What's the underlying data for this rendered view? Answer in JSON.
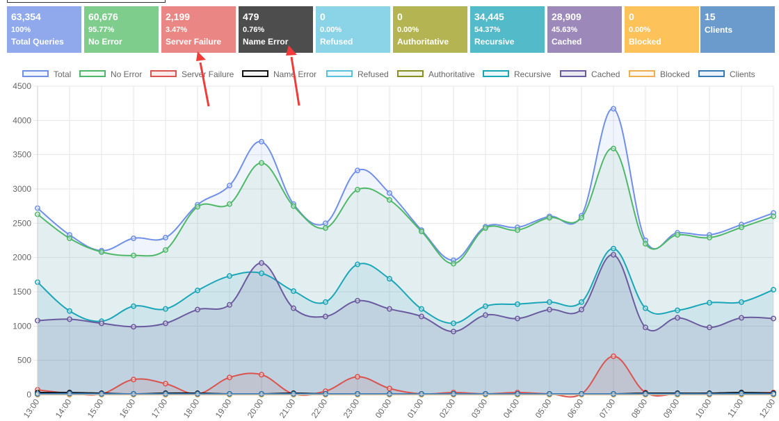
{
  "tiles": [
    {
      "value": "63,354",
      "pct": "100%",
      "label": "Total Queries",
      "color": "#8fa9ec"
    },
    {
      "value": "60,676",
      "pct": "95.77%",
      "label": "No Error",
      "color": "#7fcd8c"
    },
    {
      "value": "2,199",
      "pct": "3.47%",
      "label": "Server Failure",
      "color": "#ea8683"
    },
    {
      "value": "479",
      "pct": "0.76%",
      "label": "Name Error",
      "color": "#4d4d4d"
    },
    {
      "value": "0",
      "pct": "0.00%",
      "label": "Refused",
      "color": "#8bd3e6"
    },
    {
      "value": "0",
      "pct": "0.00%",
      "label": "Authoritative",
      "color": "#b4b552"
    },
    {
      "value": "34,445",
      "pct": "54.37%",
      "label": "Recursive",
      "color": "#53bac9"
    },
    {
      "value": "28,909",
      "pct": "45.63%",
      "label": "Cached",
      "color": "#9d88ba"
    },
    {
      "value": "0",
      "pct": "0.00%",
      "label": "Blocked",
      "color": "#fdc25a"
    },
    {
      "value": "15",
      "pct": "",
      "label": "Clients",
      "color": "#6a9bcc"
    }
  ],
  "chart_data": {
    "type": "line",
    "title": "",
    "xlabel": "",
    "ylabel": "",
    "ylim": [
      0,
      4500
    ],
    "yticks": [
      "0",
      "500",
      "1000",
      "1500",
      "2000",
      "2500",
      "3000",
      "3500",
      "4000",
      "4500"
    ],
    "categories": [
      "13:00",
      "14:00",
      "15:00",
      "16:00",
      "17:00",
      "18:00",
      "19:00",
      "20:00",
      "21:00",
      "22:00",
      "23:00",
      "00:00",
      "01:00",
      "02:00",
      "03:00",
      "04:00",
      "05:00",
      "06:00",
      "07:00",
      "08:00",
      "09:00",
      "10:00",
      "11:00",
      "12:00"
    ],
    "series": [
      {
        "name": "Total",
        "color": "#6f8fe8",
        "fill": "rgba(111,143,232,0.10)",
        "values": [
          2720,
          2330,
          2100,
          2280,
          2290,
          2770,
          3050,
          3690,
          2780,
          2500,
          3270,
          2940,
          2400,
          1960,
          2450,
          2440,
          2600,
          2610,
          4170,
          2250,
          2360,
          2330,
          2480,
          2650
        ]
      },
      {
        "name": "No Error",
        "color": "#4fb868",
        "fill": "rgba(79,184,104,0.08)",
        "values": [
          2630,
          2280,
          2080,
          2030,
          2110,
          2740,
          2780,
          3380,
          2750,
          2430,
          2990,
          2840,
          2380,
          1910,
          2430,
          2400,
          2580,
          2580,
          3590,
          2200,
          2330,
          2290,
          2440,
          2600
        ]
      },
      {
        "name": "Server Failure",
        "color": "#d9534f",
        "fill": "rgba(217,83,79,0.12)",
        "values": [
          70,
          20,
          10,
          220,
          160,
          10,
          250,
          290,
          10,
          50,
          260,
          90,
          10,
          30,
          10,
          30,
          10,
          10,
          560,
          30,
          10,
          10,
          20,
          30
        ]
      },
      {
        "name": "Name Error",
        "color": "#111111",
        "fill": "rgba(0,0,0,0.05)",
        "values": [
          30,
          30,
          20,
          10,
          20,
          20,
          10,
          10,
          20,
          10,
          10,
          10,
          10,
          10,
          10,
          10,
          10,
          10,
          10,
          20,
          20,
          20,
          30,
          20
        ]
      },
      {
        "name": "Refused",
        "color": "#5bc0de",
        "fill": "rgba(91,192,222,0.1)",
        "values": [
          0,
          0,
          0,
          0,
          0,
          0,
          0,
          0,
          0,
          0,
          0,
          0,
          0,
          0,
          0,
          0,
          0,
          0,
          0,
          0,
          0,
          0,
          0,
          0
        ]
      },
      {
        "name": "Authoritative",
        "color": "#8a8f22",
        "fill": "rgba(138,143,34,0.1)",
        "values": [
          0,
          0,
          0,
          0,
          0,
          0,
          0,
          0,
          0,
          0,
          0,
          0,
          0,
          0,
          0,
          0,
          0,
          0,
          0,
          0,
          0,
          0,
          0,
          0
        ]
      },
      {
        "name": "Recursive",
        "color": "#1aa6b7",
        "fill": "rgba(26,166,183,0.10)",
        "values": [
          1640,
          1220,
          1070,
          1290,
          1250,
          1520,
          1730,
          1770,
          1510,
          1350,
          1900,
          1690,
          1250,
          1040,
          1290,
          1320,
          1350,
          1350,
          2130,
          1260,
          1230,
          1340,
          1350,
          1530
        ]
      },
      {
        "name": "Cached",
        "color": "#6a5a9e",
        "fill": "rgba(106,90,158,0.14)",
        "values": [
          1080,
          1100,
          1040,
          990,
          1040,
          1240,
          1310,
          1920,
          1260,
          1140,
          1370,
          1250,
          1140,
          920,
          1160,
          1110,
          1240,
          1240,
          2040,
          980,
          1120,
          980,
          1120,
          1110
        ]
      },
      {
        "name": "Blocked",
        "color": "#f0ad4e",
        "fill": "rgba(240,173,78,0.1)",
        "values": [
          0,
          0,
          0,
          0,
          0,
          0,
          0,
          0,
          0,
          0,
          0,
          0,
          0,
          0,
          0,
          0,
          0,
          0,
          0,
          0,
          0,
          0,
          0,
          0
        ]
      },
      {
        "name": "Clients",
        "color": "#337ab7",
        "fill": "rgba(51,122,183,0.1)",
        "values": [
          10,
          15,
          10,
          10,
          10,
          10,
          10,
          10,
          10,
          10,
          10,
          10,
          10,
          10,
          10,
          10,
          10,
          10,
          10,
          10,
          10,
          10,
          15,
          10
        ]
      }
    ],
    "legend_position": "top"
  }
}
